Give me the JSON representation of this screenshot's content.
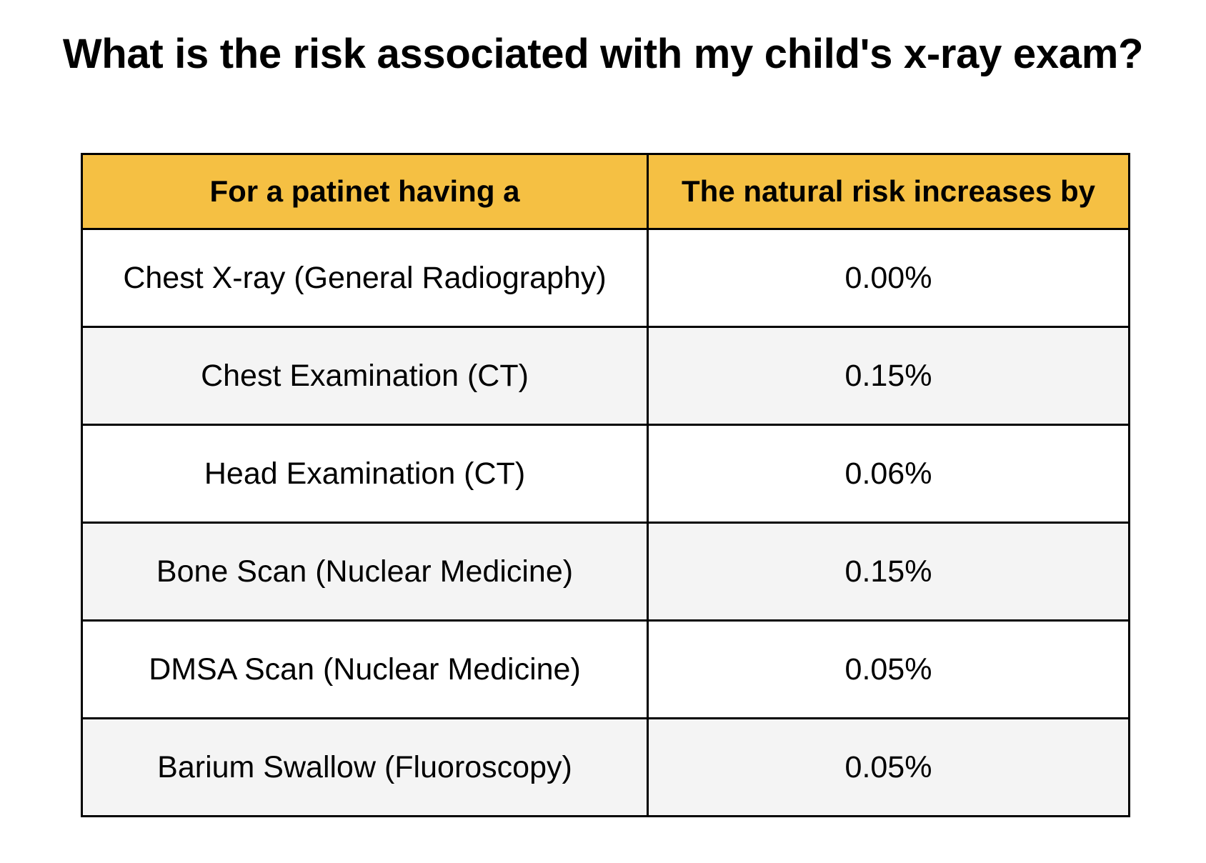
{
  "title": "What is the risk associated with my child's x-ray exam?",
  "table": {
    "headers": [
      "For a patinet having a",
      "The natural risk increases by"
    ],
    "rows": [
      {
        "exam": "Chest X-ray (General Radiography)",
        "risk": "0.00%"
      },
      {
        "exam": "Chest Examination (CT)",
        "risk": "0.15%"
      },
      {
        "exam": "Head Examination (CT)",
        "risk": "0.06%"
      },
      {
        "exam": "Bone Scan (Nuclear Medicine)",
        "risk": "0.15%"
      },
      {
        "exam": "DMSA Scan (Nuclear Medicine)",
        "risk": "0.05%"
      },
      {
        "exam": "Barium Swallow (Fluoroscopy)",
        "risk": "0.05%"
      }
    ]
  },
  "colors": {
    "header_background": "#f5c043",
    "striped_row_background": "#f4f4f4",
    "border": "#000000"
  }
}
